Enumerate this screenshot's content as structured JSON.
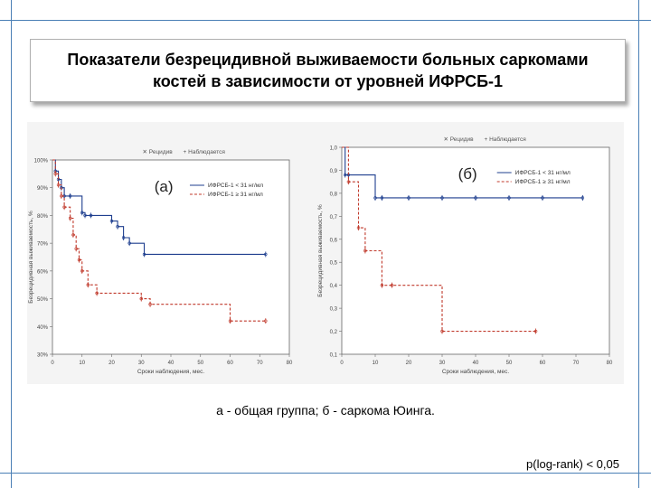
{
  "title": "Показатели безрецидивной выживаемости больных саркомами костей в зависимости от уровней ИФРСБ-1",
  "caption": "а - общая группа; б - саркома Юинга.",
  "p_value": "p(log-rank) < 0,05",
  "colors": {
    "frame": "#4a7fb5",
    "series_high": "#1f3f8f",
    "series_low": "#c0392b"
  },
  "chart_data": [
    {
      "type": "line",
      "panel_label": "(а)",
      "legend_top": [
        "Рецидив",
        "Наблюдается"
      ],
      "legend_series": [
        "ИФРСБ-1 < 31 нг/мл",
        "ИФРСБ-1 ≥ 31 нг/мл"
      ],
      "ylabel": "Безрецидивная выживаемость, %",
      "xlabel": "Сроки наблюдения, мес.",
      "xlim": [
        0,
        80
      ],
      "ylim": [
        30,
        100
      ],
      "xticks": [
        "0",
        "10",
        "20",
        "30",
        "40",
        "50",
        "60",
        "70",
        "80"
      ],
      "yticks": [
        "100%",
        "90%",
        "80%",
        "70%",
        "60%",
        "50%",
        "40%",
        "30%"
      ],
      "ytick_values": [
        100,
        90,
        80,
        70,
        60,
        50,
        40,
        30
      ],
      "series": [
        {
          "x": [
            0,
            1,
            2,
            3,
            4,
            6,
            10,
            11,
            13,
            20,
            22,
            24,
            26,
            31,
            72
          ],
          "y": [
            100,
            96,
            93,
            90,
            87,
            87,
            81,
            80,
            80,
            78,
            76,
            72,
            70,
            66,
            66
          ]
        },
        {
          "x": [
            0,
            1,
            2,
            3,
            4,
            6,
            7,
            8,
            9,
            10,
            12,
            15,
            30,
            33,
            60,
            72
          ],
          "y": [
            100,
            95,
            91,
            87,
            83,
            79,
            73,
            68,
            64,
            60,
            55,
            52,
            50,
            48,
            42,
            42
          ]
        }
      ]
    },
    {
      "type": "line",
      "panel_label": "(б)",
      "legend_top": [
        "Рецидив",
        "Наблюдается"
      ],
      "legend_series": [
        "ИФРСБ-1 < 31 нг/мл",
        "ИФРСБ-1 ≥ 31 нг/мл"
      ],
      "ylabel": "Безрецидивная выживаемость, %",
      "xlabel": "Сроки наблюдения, мес.",
      "xlim": [
        0,
        80
      ],
      "ylim": [
        0.1,
        1.0
      ],
      "xticks": [
        "0",
        "10",
        "20",
        "30",
        "40",
        "50",
        "60",
        "70",
        "80"
      ],
      "yticks": [
        "1,0",
        "0,9",
        "0,8",
        "0,7",
        "0,6",
        "0,5",
        "0,4",
        "0,3",
        "0,2",
        "0,1"
      ],
      "ytick_values": [
        1.0,
        0.9,
        0.8,
        0.7,
        0.6,
        0.5,
        0.4,
        0.3,
        0.2,
        0.1
      ],
      "series": [
        {
          "x": [
            0,
            1,
            2,
            10,
            12,
            20,
            30,
            40,
            50,
            60,
            72
          ],
          "y": [
            1.0,
            0.88,
            0.88,
            0.78,
            0.78,
            0.78,
            0.78,
            0.78,
            0.78,
            0.78,
            0.78
          ]
        },
        {
          "x": [
            0,
            2,
            5,
            7,
            12,
            15,
            30,
            58
          ],
          "y": [
            1.0,
            0.85,
            0.65,
            0.55,
            0.4,
            0.4,
            0.2,
            0.2
          ]
        }
      ]
    }
  ]
}
